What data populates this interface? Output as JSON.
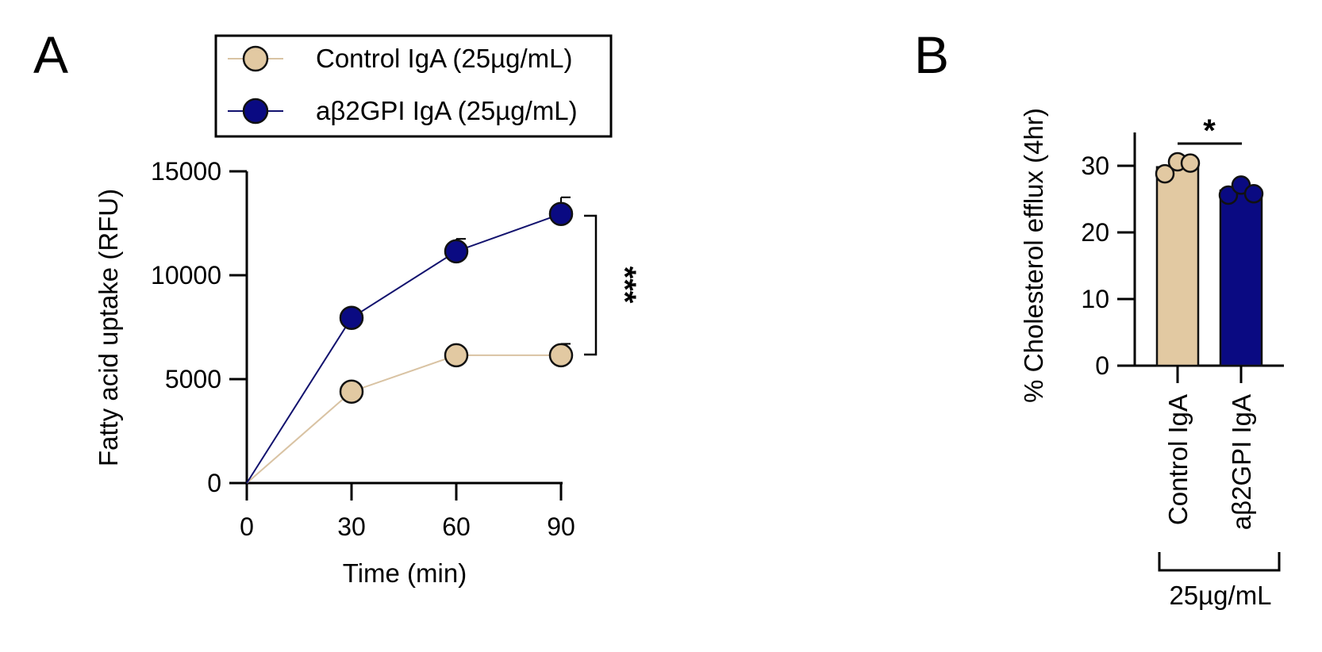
{
  "chart_data": [
    {
      "panel": "A",
      "type": "line",
      "xlabel": "Time (min)",
      "ylabel": "Fatty acid uptake (RFU)",
      "xlim": [
        0,
        90
      ],
      "ylim": [
        0,
        15000
      ],
      "xticks": [
        "0",
        "30",
        "60",
        "90"
      ],
      "yticks": [
        "0",
        "5000",
        "10000",
        "15000"
      ],
      "x": [
        0,
        30,
        60,
        90
      ],
      "series": [
        {
          "name": "Control IgA (25µg/mL)",
          "color": "#e2c9a2",
          "line_color": "#d9c3a3",
          "values": [
            0,
            4400,
            6150,
            6150
          ],
          "errors": [
            0,
            0,
            0,
            550
          ]
        },
        {
          "name": "aβ2GPI IgA (25µg/mL)",
          "color": "#0a0a82",
          "line_color": "#12126e",
          "values": [
            0,
            7950,
            11150,
            12950
          ],
          "errors": [
            0,
            0,
            600,
            800
          ]
        }
      ],
      "significance": "***",
      "legend_position": "top"
    },
    {
      "panel": "B",
      "type": "bar",
      "ylabel": "% Cholesterol efflux (4hr)",
      "ylim": [
        0,
        35
      ],
      "yticks": [
        "0",
        "10",
        "20",
        "30"
      ],
      "categories": [
        "Control IgA",
        "aβ2GPI IgA"
      ],
      "values": [
        29.8,
        26.3
      ],
      "colors": [
        "#e2c9a2",
        "#0a0a82"
      ],
      "points": [
        [
          28.8,
          30.6,
          30.4
        ],
        [
          25.6,
          27.1,
          25.8
        ]
      ],
      "group_label": "25µg/mL",
      "significance": "*"
    }
  ]
}
